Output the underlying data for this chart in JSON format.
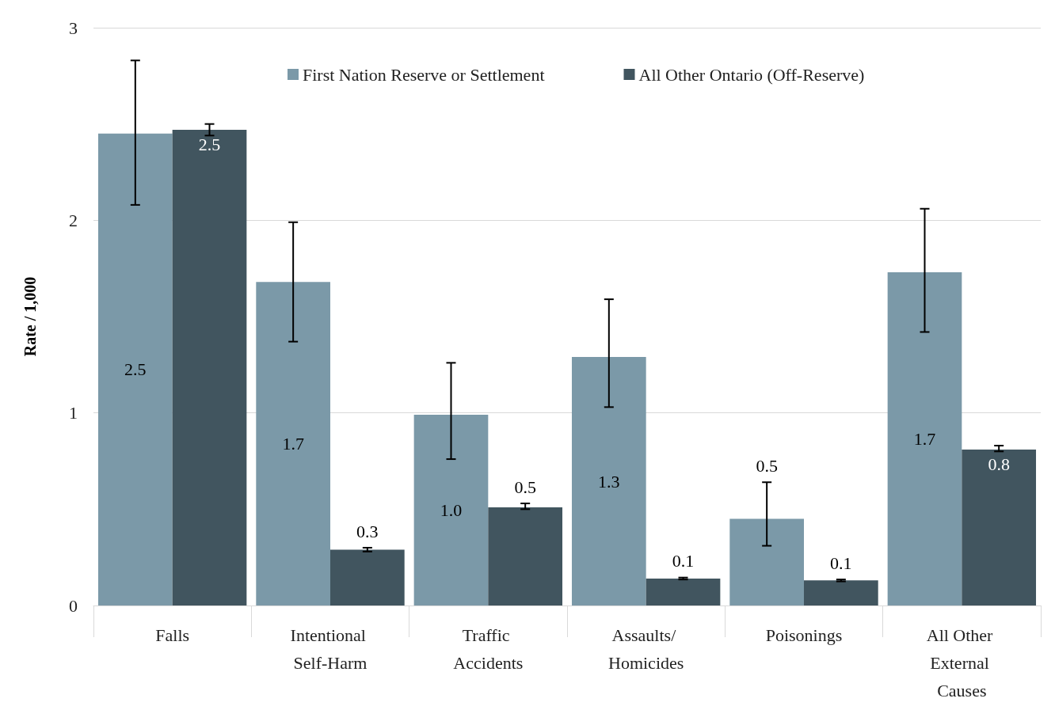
{
  "chart_data": {
    "type": "bar",
    "ylabel": "Rate / 1,000",
    "categories": [
      "Falls",
      "Intentional Self-Harm",
      "Traffic Accidents",
      "Assaults/ Homicides",
      "Poisonings",
      "All Other External Causes"
    ],
    "series": [
      {
        "name": "First Nation Reserve or Settlement",
        "color": "#7b99a8",
        "values": [
          2.45,
          1.68,
          0.99,
          1.29,
          0.45,
          1.73
        ],
        "value_labels": [
          "2.5",
          "1.7",
          "1.0",
          "1.3",
          "0.5",
          "1.7"
        ],
        "errors": [
          [
            2.08,
            2.83
          ],
          [
            1.37,
            1.99
          ],
          [
            0.76,
            1.26
          ],
          [
            1.03,
            1.59
          ],
          [
            0.31,
            0.64
          ],
          [
            1.42,
            2.06
          ]
        ]
      },
      {
        "name": "All Other Ontario (Off-Reserve)",
        "color": "#41555f",
        "values": [
          2.47,
          0.29,
          0.51,
          0.14,
          0.13,
          0.81
        ],
        "value_labels": [
          "2.5",
          "0.3",
          "0.5",
          "0.1",
          "0.1",
          "0.8"
        ],
        "errors": [
          [
            2.44,
            2.5
          ],
          [
            0.28,
            0.3
          ],
          [
            0.5,
            0.53
          ],
          [
            0.135,
            0.145
          ],
          [
            0.125,
            0.135
          ],
          [
            0.8,
            0.83
          ]
        ]
      }
    ],
    "ylim": [
      0,
      3
    ],
    "yticks": [
      0,
      1,
      2,
      3
    ],
    "grid": "y",
    "legend": "top"
  }
}
